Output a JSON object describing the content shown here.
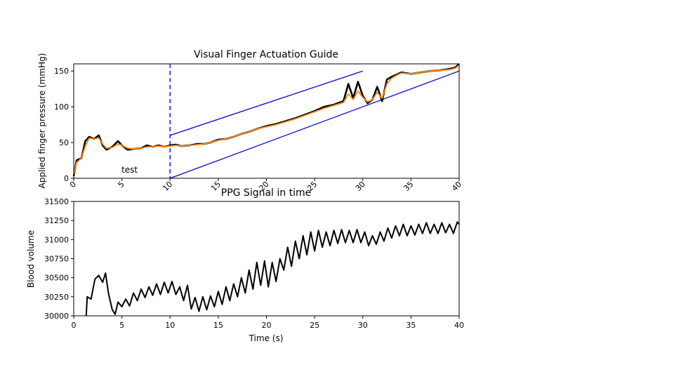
{
  "chart_data": [
    {
      "type": "line",
      "title": "Visual Finger Actuation Guide",
      "xlabel": "",
      "ylabel": "Applied  finger pressure (mmHg)",
      "xlim": [
        0,
        40
      ],
      "ylim": [
        0,
        160
      ],
      "xticks": [
        "0",
        "5",
        "10",
        "15",
        "20",
        "25",
        "30",
        "35",
        "40"
      ],
      "xtick_values": [
        0,
        5,
        10,
        15,
        20,
        25,
        30,
        35,
        40
      ],
      "yticks": [
        "0",
        "50",
        "100",
        "150"
      ],
      "ytick_values": [
        0,
        50,
        100,
        150
      ],
      "xtick_rotation_deg": -45,
      "grid": false,
      "annotation": {
        "text": "test",
        "x": 5.8,
        "y": 8
      },
      "vline": {
        "x": 10,
        "color": "#3333ee",
        "style": "dashed"
      },
      "guide_lines": [
        {
          "color": "#2222dd",
          "points": [
            [
              10,
              60
            ],
            [
              30,
              150
            ]
          ]
        },
        {
          "color": "#2222dd",
          "points": [
            [
              10,
              0
            ],
            [
              40,
              150
            ]
          ]
        }
      ],
      "series": [
        {
          "color": "#000000",
          "style": "raw",
          "points": [
            [
              0,
              3
            ],
            [
              0.3,
              25
            ],
            [
              0.8,
              28
            ],
            [
              1.2,
              52
            ],
            [
              1.6,
              58
            ],
            [
              2.1,
              55
            ],
            [
              2.6,
              60
            ],
            [
              3.0,
              46
            ],
            [
              3.4,
              40
            ],
            [
              4.0,
              44
            ],
            [
              4.6,
              52
            ],
            [
              5.0,
              46
            ],
            [
              5.6,
              40
            ],
            [
              6.2,
              41
            ],
            [
              7.0,
              42
            ],
            [
              7.6,
              46
            ],
            [
              8.2,
              44
            ],
            [
              8.8,
              46
            ],
            [
              9.4,
              44
            ],
            [
              10.0,
              46
            ],
            [
              10.6,
              47
            ],
            [
              11.2,
              45
            ],
            [
              12.0,
              46
            ],
            [
              12.8,
              48
            ],
            [
              13.5,
              48
            ],
            [
              14.2,
              50
            ],
            [
              15.0,
              54
            ],
            [
              15.8,
              55
            ],
            [
              16.6,
              58
            ],
            [
              17.4,
              62
            ],
            [
              18.2,
              65
            ],
            [
              19.0,
              69
            ],
            [
              20.0,
              73
            ],
            [
              21.0,
              76
            ],
            [
              22.0,
              80
            ],
            [
              23.0,
              84
            ],
            [
              24.0,
              89
            ],
            [
              25.0,
              94
            ],
            [
              26.0,
              100
            ],
            [
              27.0,
              103
            ],
            [
              28.0,
              108
            ],
            [
              28.5,
              132
            ],
            [
              29.0,
              112
            ],
            [
              29.5,
              135
            ],
            [
              30.0,
              115
            ],
            [
              30.5,
              105
            ],
            [
              31.0,
              110
            ],
            [
              31.5,
              128
            ],
            [
              32.0,
              108
            ],
            [
              32.5,
              138
            ],
            [
              33.0,
              142
            ],
            [
              33.5,
              145
            ],
            [
              34.0,
              148
            ],
            [
              35.0,
              146
            ],
            [
              36.0,
              148
            ],
            [
              37.0,
              150
            ],
            [
              38.0,
              151
            ],
            [
              39.0,
              153
            ],
            [
              39.6,
              155
            ],
            [
              40.0,
              160
            ]
          ]
        },
        {
          "color": "#ff8c1a",
          "style": "smoothed",
          "points": [
            [
              0,
              5
            ],
            [
              0.3,
              22
            ],
            [
              0.8,
              28
            ],
            [
              1.2,
              45
            ],
            [
              1.6,
              56
            ],
            [
              2.1,
              55
            ],
            [
              2.6,
              56
            ],
            [
              3.0,
              48
            ],
            [
              3.4,
              42
            ],
            [
              4.0,
              43
            ],
            [
              4.6,
              48
            ],
            [
              5.0,
              46
            ],
            [
              5.6,
              42
            ],
            [
              6.2,
              41
            ],
            [
              7.0,
              42
            ],
            [
              7.6,
              44
            ],
            [
              8.2,
              44
            ],
            [
              8.8,
              45
            ],
            [
              9.4,
              44
            ],
            [
              10.0,
              45
            ],
            [
              10.6,
              46
            ],
            [
              11.2,
              45
            ],
            [
              12.0,
              46
            ],
            [
              12.8,
              47
            ],
            [
              13.5,
              48
            ],
            [
              14.2,
              50
            ],
            [
              15.0,
              53
            ],
            [
              15.8,
              55
            ],
            [
              16.6,
              58
            ],
            [
              17.4,
              62
            ],
            [
              18.2,
              65
            ],
            [
              19.0,
              69
            ],
            [
              20.0,
              72
            ],
            [
              21.0,
              75
            ],
            [
              22.0,
              79
            ],
            [
              23.0,
              83
            ],
            [
              24.0,
              88
            ],
            [
              25.0,
              93
            ],
            [
              26.0,
              98
            ],
            [
              27.0,
              102
            ],
            [
              28.0,
              106
            ],
            [
              28.5,
              118
            ],
            [
              29.0,
              110
            ],
            [
              29.5,
              122
            ],
            [
              30.0,
              113
            ],
            [
              30.5,
              107
            ],
            [
              31.0,
              110
            ],
            [
              31.5,
              120
            ],
            [
              32.0,
              112
            ],
            [
              32.5,
              132
            ],
            [
              33.0,
              140
            ],
            [
              33.5,
              144
            ],
            [
              34.0,
              147
            ],
            [
              35.0,
              146
            ],
            [
              36.0,
              148
            ],
            [
              37.0,
              150
            ],
            [
              38.0,
              151
            ],
            [
              39.0,
              152
            ],
            [
              39.6,
              154
            ],
            [
              40.0,
              158
            ]
          ]
        }
      ]
    },
    {
      "type": "line",
      "title": "PPG Signal in time",
      "xlabel": "Time (s)",
      "ylabel": "Blood volume",
      "xlim": [
        0,
        40
      ],
      "ylim": [
        30000,
        31500
      ],
      "xticks": [
        "0",
        "5",
        "10",
        "15",
        "20",
        "25",
        "30",
        "35",
        "40"
      ],
      "xtick_values": [
        0,
        5,
        10,
        15,
        20,
        25,
        30,
        35,
        40
      ],
      "yticks": [
        "30000",
        "30250",
        "30500",
        "30750",
        "31000",
        "31250",
        "31500"
      ],
      "ytick_values": [
        30000,
        30250,
        30500,
        30750,
        31000,
        31250,
        31500
      ],
      "grid": false,
      "series": [
        {
          "color": "#000000",
          "points": [
            [
              1.3,
              30000
            ],
            [
              1.4,
              30250
            ],
            [
              1.8,
              30220
            ],
            [
              2.2,
              30480
            ],
            [
              2.6,
              30530
            ],
            [
              3.0,
              30440
            ],
            [
              3.3,
              30560
            ],
            [
              3.6,
              30300
            ],
            [
              4.0,
              30080
            ],
            [
              4.3,
              30020
            ],
            [
              4.6,
              30180
            ],
            [
              5.0,
              30120
            ],
            [
              5.4,
              30220
            ],
            [
              5.8,
              30130
            ],
            [
              6.2,
              30300
            ],
            [
              6.6,
              30200
            ],
            [
              7.0,
              30350
            ],
            [
              7.4,
              30240
            ],
            [
              7.8,
              30380
            ],
            [
              8.2,
              30270
            ],
            [
              8.6,
              30420
            ],
            [
              9.0,
              30280
            ],
            [
              9.4,
              30440
            ],
            [
              9.8,
              30300
            ],
            [
              10.2,
              30450
            ],
            [
              10.6,
              30280
            ],
            [
              11.0,
              30380
            ],
            [
              11.4,
              30200
            ],
            [
              11.8,
              30400
            ],
            [
              12.2,
              30090
            ],
            [
              12.6,
              30240
            ],
            [
              13.0,
              30060
            ],
            [
              13.4,
              30250
            ],
            [
              13.8,
              30080
            ],
            [
              14.2,
              30260
            ],
            [
              14.6,
              30120
            ],
            [
              15.0,
              30320
            ],
            [
              15.4,
              30150
            ],
            [
              15.8,
              30380
            ],
            [
              16.2,
              30200
            ],
            [
              16.6,
              30420
            ],
            [
              17.0,
              30250
            ],
            [
              17.4,
              30500
            ],
            [
              17.8,
              30300
            ],
            [
              18.2,
              30600
            ],
            [
              18.6,
              30350
            ],
            [
              19.0,
              30700
            ],
            [
              19.4,
              30400
            ],
            [
              19.8,
              30720
            ],
            [
              20.2,
              30380
            ],
            [
              20.6,
              30700
            ],
            [
              21.0,
              30450
            ],
            [
              21.4,
              30750
            ],
            [
              21.8,
              30600
            ],
            [
              22.2,
              30900
            ],
            [
              22.6,
              30650
            ],
            [
              23.0,
              30980
            ],
            [
              23.4,
              30750
            ],
            [
              23.8,
              31050
            ],
            [
              24.2,
              30800
            ],
            [
              24.6,
              31100
            ],
            [
              25.0,
              30850
            ],
            [
              25.4,
              31120
            ],
            [
              25.8,
              30900
            ],
            [
              26.2,
              31100
            ],
            [
              26.6,
              30920
            ],
            [
              27.0,
              31120
            ],
            [
              27.4,
              30950
            ],
            [
              27.8,
              31130
            ],
            [
              28.2,
              30960
            ],
            [
              28.6,
              31120
            ],
            [
              29.0,
              30960
            ],
            [
              29.4,
              31130
            ],
            [
              29.8,
              30960
            ],
            [
              30.2,
              31100
            ],
            [
              30.6,
              30920
            ],
            [
              31.0,
              31050
            ],
            [
              31.4,
              30940
            ],
            [
              31.8,
              31100
            ],
            [
              32.2,
              30980
            ],
            [
              32.6,
              31150
            ],
            [
              33.0,
              31020
            ],
            [
              33.4,
              31180
            ],
            [
              33.8,
              31050
            ],
            [
              34.2,
              31200
            ],
            [
              34.6,
              31050
            ],
            [
              35.0,
              31180
            ],
            [
              35.4,
              31060
            ],
            [
              35.8,
              31200
            ],
            [
              36.2,
              31080
            ],
            [
              36.6,
              31220
            ],
            [
              37.0,
              31080
            ],
            [
              37.4,
              31200
            ],
            [
              37.8,
              31080
            ],
            [
              38.2,
              31220
            ],
            [
              38.6,
              31090
            ],
            [
              39.0,
              31200
            ],
            [
              39.4,
              31080
            ],
            [
              39.8,
              31230
            ],
            [
              40.0,
              31200
            ]
          ]
        }
      ]
    }
  ]
}
